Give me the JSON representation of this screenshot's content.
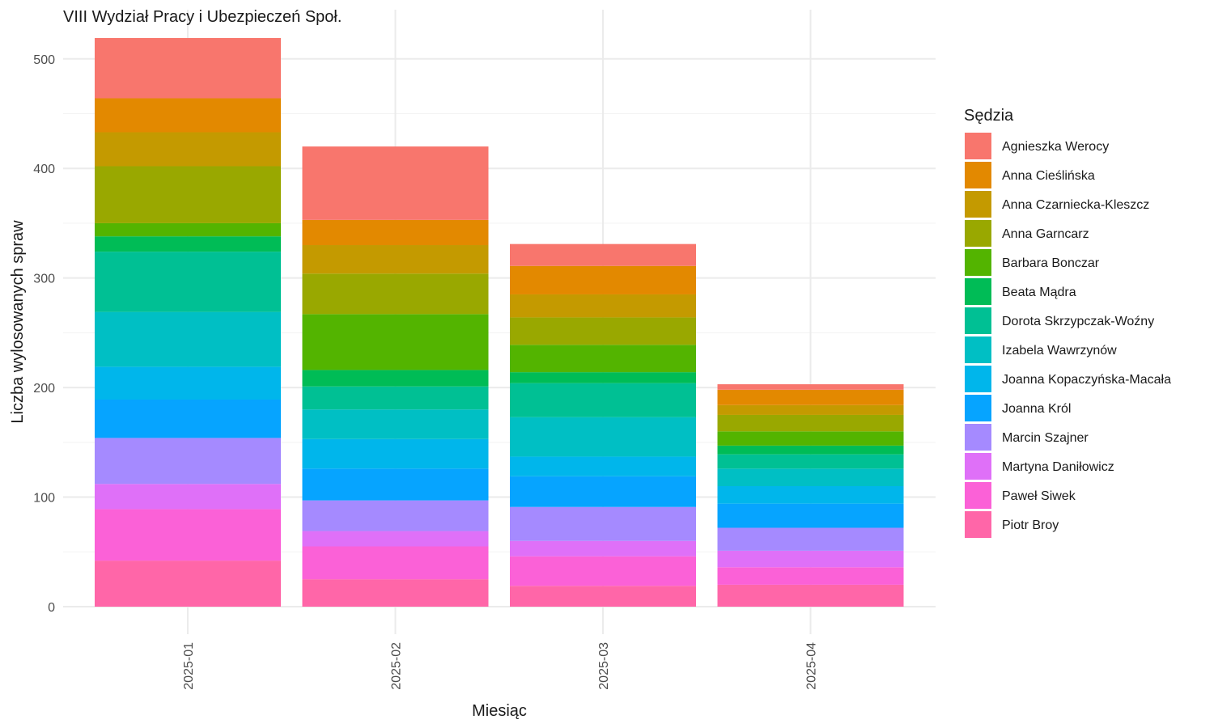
{
  "chart_data": {
    "type": "bar",
    "stacked": true,
    "title": "VIII Wydział Pracy i Ubezpieczeń Społ.",
    "xlabel": "Miesiąc",
    "ylabel": "Liczba wylosowanych spraw",
    "categories": [
      "2025-01",
      "2025-02",
      "2025-03",
      "2025-04"
    ],
    "y_ticks": [
      "0",
      "100",
      "200",
      "300",
      "400",
      "500"
    ],
    "ylim": [
      0,
      520
    ],
    "grid": true,
    "legend": {
      "title": "Sędzia",
      "position": "right"
    },
    "series": [
      {
        "name": "Agnieszka Werocy",
        "color": "#F8766D",
        "values": [
          55,
          67,
          20,
          5
        ]
      },
      {
        "name": "Anna Cieślińska",
        "color": "#E38900",
        "values": [
          31,
          23,
          26,
          14
        ]
      },
      {
        "name": "Anna Czarniecka-Kleszcz",
        "color": "#C49A00",
        "values": [
          31,
          26,
          21,
          9
        ]
      },
      {
        "name": "Anna Garncarz",
        "color": "#99A800",
        "values": [
          52,
          37,
          25,
          15
        ]
      },
      {
        "name": "Barbara Bonczar",
        "color": "#53B400",
        "values": [
          12,
          51,
          25,
          13
        ]
      },
      {
        "name": "Beata Mądra",
        "color": "#00BC56",
        "values": [
          14,
          15,
          10,
          8
        ]
      },
      {
        "name": "Dorota Skrzypczak-Woźny",
        "color": "#00C094",
        "values": [
          55,
          21,
          31,
          13
        ]
      },
      {
        "name": "Izabela Wawrzynów",
        "color": "#00BFC4",
        "values": [
          50,
          27,
          36,
          16
        ]
      },
      {
        "name": "Joanna Kopaczyńska-Macała",
        "color": "#00B6EB",
        "values": [
          30,
          27,
          18,
          16
        ]
      },
      {
        "name": "Joanna Król",
        "color": "#06A4FF",
        "values": [
          35,
          29,
          28,
          22
        ]
      },
      {
        "name": "Marcin Szajner",
        "color": "#A58AFF",
        "values": [
          42,
          28,
          31,
          21
        ]
      },
      {
        "name": "Martyna Daniłowicz",
        "color": "#DF70F8",
        "values": [
          23,
          14,
          14,
          15
        ]
      },
      {
        "name": "Paweł Siwek",
        "color": "#FB61D7",
        "values": [
          47,
          30,
          27,
          16
        ]
      },
      {
        "name": "Piotr Broy",
        "color": "#FF66A8",
        "values": [
          42,
          25,
          19,
          20
        ]
      }
    ]
  }
}
